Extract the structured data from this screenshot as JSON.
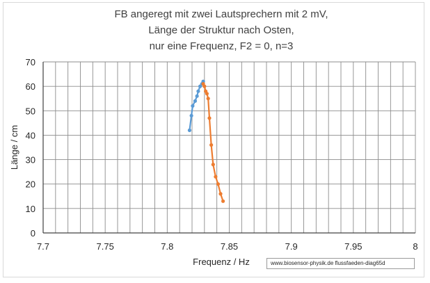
{
  "chart_data": {
    "type": "line",
    "title_lines": [
      "FB angeregt mit zwei Lautsprechern mit 2 mV,",
      "Länge der Struktur nach Osten,",
      "nur eine Frequenz, F2 = 0,   n=3"
    ],
    "xlabel": "Frequenz / Hz",
    "ylabel": "Länge / cm",
    "xlim": [
      7.7,
      8.0
    ],
    "ylim": [
      0,
      70
    ],
    "x_ticks": [
      "7.7",
      "7.75",
      "7.8",
      "7.85",
      "7.9",
      "7.95",
      "8"
    ],
    "y_ticks": [
      "0",
      "10",
      "20",
      "30",
      "40",
      "50",
      "60",
      "70"
    ],
    "grid": true,
    "x_minor_step": 0.01,
    "y_major_step": 10,
    "series": [
      {
        "color": "#5b9bd5",
        "points": [
          [
            7.818,
            42
          ],
          [
            7.8195,
            48
          ],
          [
            7.8205,
            52
          ],
          [
            7.8225,
            54
          ],
          [
            7.824,
            56
          ],
          [
            7.825,
            58
          ],
          [
            7.8265,
            60
          ],
          [
            7.828,
            61
          ],
          [
            7.829,
            62
          ]
        ]
      },
      {
        "color": "#ed7d31",
        "points": [
          [
            7.829,
            61
          ],
          [
            7.83,
            60
          ],
          [
            7.831,
            58
          ],
          [
            7.832,
            57
          ],
          [
            7.833,
            55
          ],
          [
            7.834,
            47
          ],
          [
            7.8355,
            36
          ],
          [
            7.837,
            28
          ],
          [
            7.839,
            23
          ],
          [
            7.841,
            20
          ],
          [
            7.843,
            16
          ],
          [
            7.845,
            13
          ]
        ]
      }
    ]
  },
  "credit": "www.biosensor-physik.de  flussfaeden-diag65d"
}
